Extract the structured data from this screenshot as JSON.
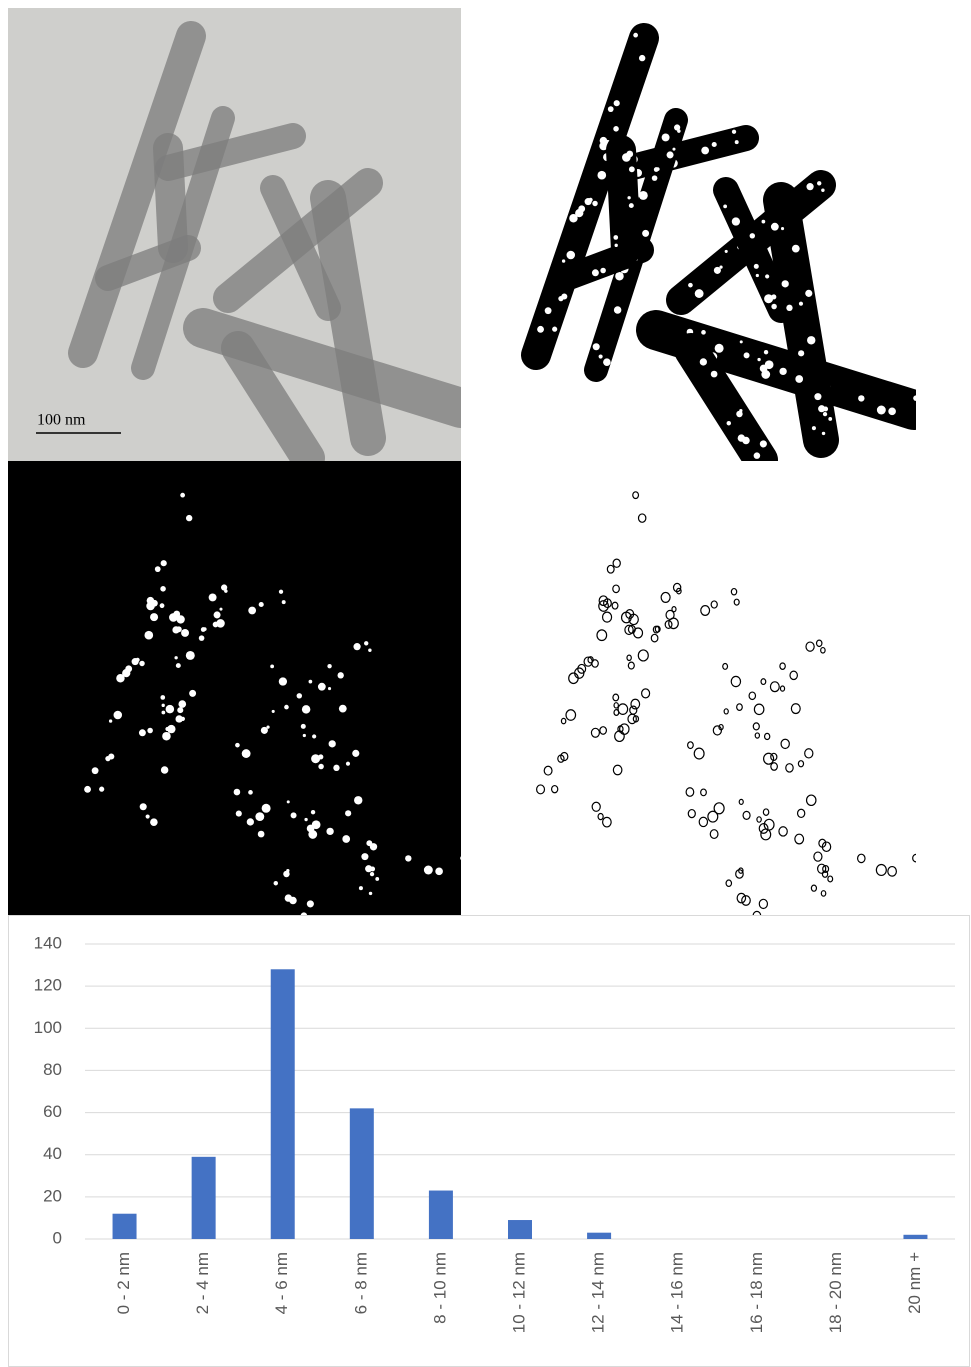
{
  "figure": {
    "scale_bar_label": "100 nm"
  },
  "chart_data": {
    "type": "bar",
    "categories": [
      "0 - 2 nm",
      "2 - 4 nm",
      "4 - 6 nm",
      "6 - 8 nm",
      "8 - 10 nm",
      "10 - 12 nm",
      "12 - 14 nm",
      "14 - 16 nm",
      "16 - 18 nm",
      "18 - 20 nm",
      "20 nm +"
    ],
    "values": [
      12,
      39,
      128,
      62,
      23,
      9,
      3,
      0,
      0,
      0,
      2
    ],
    "color": "#4472c4",
    "ylim": [
      0,
      140
    ],
    "yticks": [
      0,
      20,
      40,
      60,
      80,
      100,
      120,
      140
    ],
    "grid": true
  }
}
